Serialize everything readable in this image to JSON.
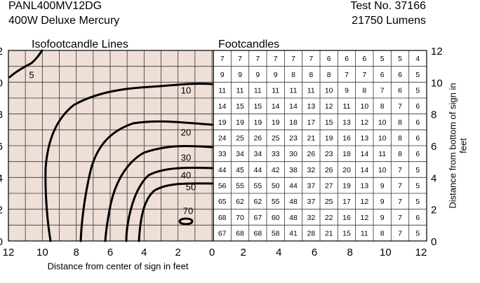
{
  "header": {
    "model": "PANL400MV12DG",
    "lamp": "400W Deluxe Mercury",
    "test_no": "Test No. 37166",
    "lumens": "21750 Lumens"
  },
  "left_title": "Isofootcandle Lines",
  "table_title": "Footcandles",
  "x_ticks_left": [
    12,
    10,
    8,
    6,
    4,
    2,
    0
  ],
  "x_ticks_right": [
    2,
    4,
    6,
    8,
    10,
    12
  ],
  "y_ticks": [
    12,
    10,
    8,
    6,
    4,
    2,
    0
  ],
  "x_axis_label": "Distance from center of sign in feet",
  "y_axis_label": [
    "Distance from bottom of sign in",
    "feet"
  ],
  "contours": [
    {
      "label": "5"
    },
    {
      "label": "10"
    },
    {
      "label": "20"
    },
    {
      "label": "30"
    },
    {
      "label": "40"
    },
    {
      "label": "50"
    },
    {
      "label": "70"
    }
  ],
  "table": {
    "rows": [
      [
        7,
        7,
        7,
        7,
        7,
        7,
        6,
        6,
        6,
        5,
        5,
        4
      ],
      [
        9,
        9,
        9,
        9,
        8,
        8,
        8,
        7,
        7,
        6,
        6,
        5
      ],
      [
        11,
        11,
        11,
        11,
        11,
        11,
        10,
        9,
        8,
        7,
        6,
        5
      ],
      [
        14,
        15,
        15,
        14,
        14,
        13,
        12,
        11,
        10,
        8,
        7,
        6
      ],
      [
        19,
        19,
        19,
        19,
        18,
        17,
        15,
        13,
        12,
        10,
        8,
        6
      ],
      [
        24,
        25,
        26,
        25,
        23,
        21,
        19,
        16,
        13,
        10,
        8,
        6
      ],
      [
        33,
        34,
        34,
        33,
        30,
        26,
        23,
        18,
        14,
        11,
        8,
        6
      ],
      [
        44,
        45,
        44,
        42,
        38,
        32,
        26,
        20,
        14,
        10,
        7,
        5
      ],
      [
        56,
        55,
        55,
        50,
        44,
        37,
        27,
        19,
        13,
        9,
        7,
        5
      ],
      [
        65,
        62,
        62,
        55,
        48,
        37,
        25,
        17,
        12,
        9,
        7,
        5
      ],
      [
        68,
        70,
        67,
        60,
        48,
        32,
        22,
        16,
        12,
        9,
        7,
        6
      ],
      [
        67,
        68,
        68,
        58,
        41,
        28,
        21,
        15,
        11,
        8,
        7,
        5
      ]
    ]
  }
}
